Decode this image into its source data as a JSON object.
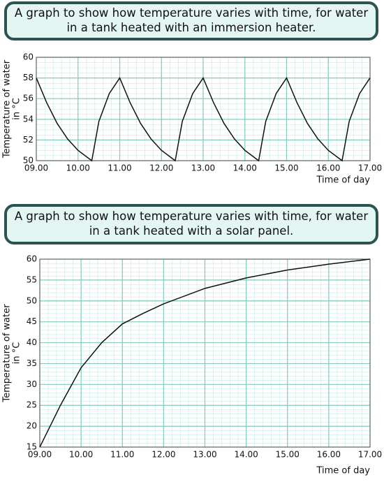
{
  "chart_data": [
    {
      "type": "line",
      "title": [
        "A graph to show how temperature varies with time, for water",
        "in a tank heated with an immersion heater."
      ],
      "ylabel": [
        "Temperature of water",
        "in °C"
      ],
      "xlabel": "Time of day",
      "x": [
        9,
        9.25,
        9.5,
        9.75,
        10,
        10.33,
        10.5,
        10.75,
        11,
        11.25,
        11.5,
        11.75,
        12,
        12.33,
        12.5,
        12.75,
        13,
        13.25,
        13.5,
        13.75,
        14,
        14.33,
        14.5,
        14.75,
        15,
        15.25,
        15.5,
        15.75,
        16,
        16.33,
        16.5,
        16.75,
        17
      ],
      "values": [
        58,
        55.6,
        53.6,
        52.1,
        51,
        50,
        53.8,
        56.5,
        58,
        55.6,
        53.6,
        52.1,
        51,
        50,
        53.8,
        56.5,
        58,
        55.6,
        53.6,
        52.1,
        51,
        50,
        53.8,
        56.5,
        58,
        55.6,
        53.6,
        52.1,
        51,
        50,
        53.8,
        56.5,
        58
      ],
      "color": "#111111",
      "xlim": [
        9,
        17
      ],
      "xticks": [
        {
          "value": 9,
          "label": "09.00"
        },
        {
          "value": 10,
          "label": "10.00"
        },
        {
          "value": 11,
          "label": "11.00"
        },
        {
          "value": 12,
          "label": "12.00"
        },
        {
          "value": 13,
          "label": "13.00"
        },
        {
          "value": 14,
          "label": "14.00"
        },
        {
          "value": 15,
          "label": "15.00"
        },
        {
          "value": 16,
          "label": "16.00"
        },
        {
          "value": 17,
          "label": "17.00"
        }
      ],
      "ylim": [
        50,
        60
      ],
      "yticks": [
        50,
        52,
        54,
        56,
        58,
        60
      ],
      "grid": true
    },
    {
      "type": "line",
      "title": [
        "A graph to show how temperature varies with time, for water",
        "in a tank heated with a solar panel."
      ],
      "ylabel": [
        "Temperature of water",
        "in °C"
      ],
      "xlabel": "Time of day",
      "x": [
        9,
        9.5,
        10,
        10.5,
        11,
        11.5,
        12,
        13,
        14,
        15,
        16,
        17
      ],
      "values": [
        15,
        25,
        34,
        40,
        44.5,
        47,
        49.3,
        53,
        55.5,
        57.4,
        58.8,
        60
      ],
      "color": "#111111",
      "xlim": [
        9,
        17
      ],
      "xticks": [
        {
          "value": 9,
          "label": "09.00"
        },
        {
          "value": 10,
          "label": "10.00"
        },
        {
          "value": 11,
          "label": "11.00"
        },
        {
          "value": 12,
          "label": "12.00"
        },
        {
          "value": 13,
          "label": "13.00"
        },
        {
          "value": 14,
          "label": "14.00"
        },
        {
          "value": 15,
          "label": "15.00"
        },
        {
          "value": 16,
          "label": "16.00"
        },
        {
          "value": 17,
          "label": "17.00"
        }
      ],
      "ylim": [
        15,
        60
      ],
      "yticks": [
        15,
        20,
        25,
        30,
        35,
        40,
        45,
        50,
        55,
        60
      ],
      "grid": true
    }
  ]
}
